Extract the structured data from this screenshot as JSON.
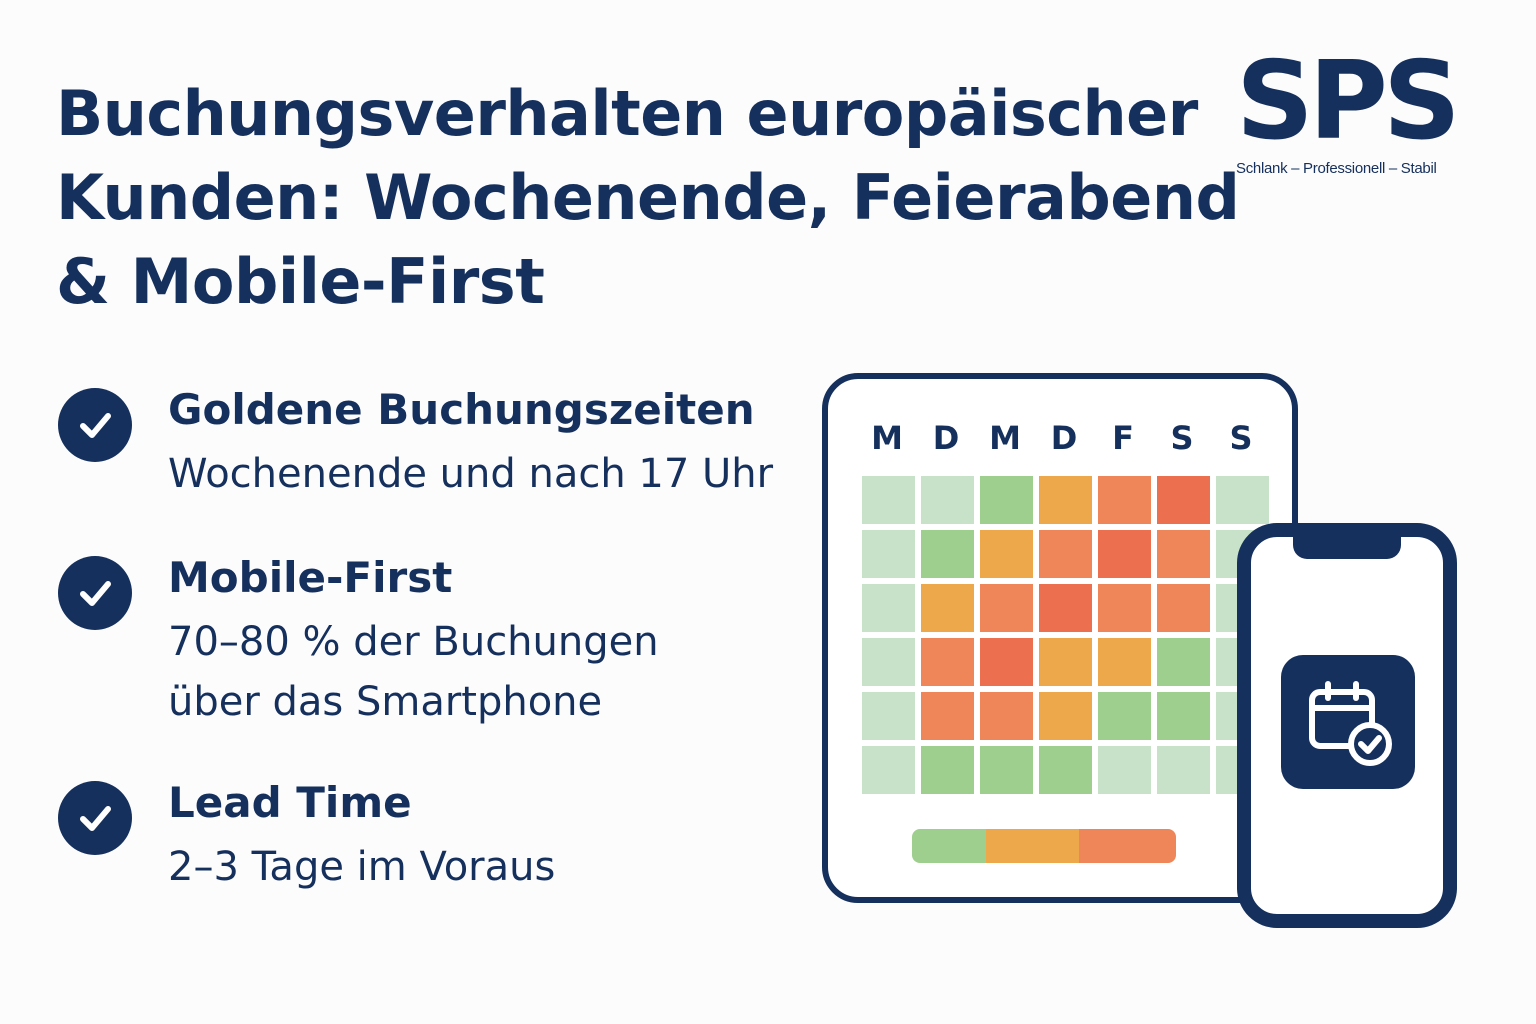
{
  "title": {
    "lines": [
      "Buchungsverhalten europäischer",
      "Kunden: Wochenende, Feierabend",
      "& Mobile-First"
    ]
  },
  "logo": {
    "mark": "SPS",
    "tagline": "Schlank – Professionell – Stabil"
  },
  "features": [
    {
      "heading": "Goldene Buchungszeiten",
      "text": "Wochenende und nach 17 Uhr",
      "icon": "check-icon"
    },
    {
      "heading": "Mobile-First",
      "text": "70–80 % der Buchungen\nüber das Smartphone",
      "icon": "check-icon"
    },
    {
      "heading": "Lead Time",
      "text": "2–3 Tage im Voraus",
      "icon": "check-icon"
    }
  ],
  "heatmap": {
    "days": [
      "M",
      "D",
      "M",
      "D",
      "F",
      "S",
      "S"
    ],
    "levels": [
      [
        0,
        0,
        1,
        2,
        3,
        4,
        0
      ],
      [
        0,
        1,
        2,
        3,
        4,
        3,
        0
      ],
      [
        0,
        2,
        3,
        4,
        3,
        3,
        0
      ],
      [
        0,
        3,
        4,
        2,
        2,
        1,
        0
      ],
      [
        0,
        3,
        3,
        2,
        1,
        1,
        0
      ],
      [
        0,
        1,
        1,
        1,
        0,
        0,
        0
      ]
    ],
    "colors": [
      "#c8e2c9",
      "#9ecf8e",
      "#eea84c",
      "#ee8659",
      "#ec6f4f"
    ]
  },
  "legend_scale": {
    "colors": [
      "#9ecf8e",
      "#eea84c",
      "#ee8659"
    ]
  },
  "phone": {
    "app_icon": "calendar-check-icon"
  },
  "colors": {
    "navy": "#15305c",
    "background": "#fcfcfd"
  }
}
